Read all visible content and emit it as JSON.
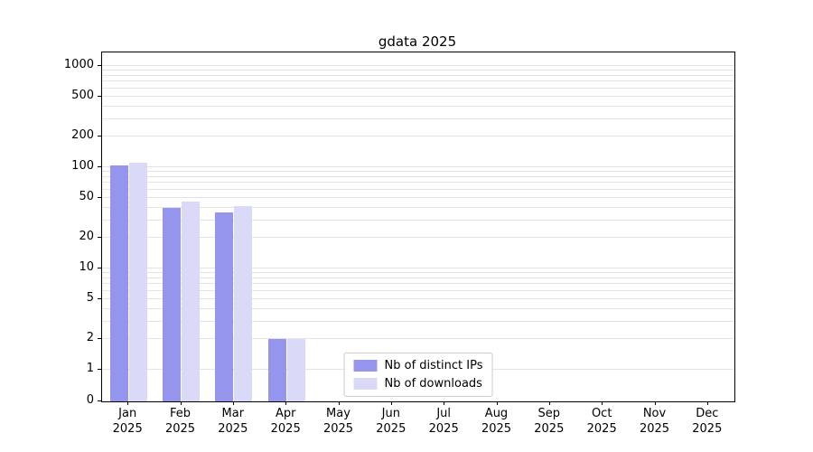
{
  "chart_data": {
    "type": "bar",
    "title": "gdata 2025",
    "categories": [
      {
        "month": "Jan",
        "year": "2025"
      },
      {
        "month": "Feb",
        "year": "2025"
      },
      {
        "month": "Mar",
        "year": "2025"
      },
      {
        "month": "Apr",
        "year": "2025"
      },
      {
        "month": "May",
        "year": "2025"
      },
      {
        "month": "Jun",
        "year": "2025"
      },
      {
        "month": "Jul",
        "year": "2025"
      },
      {
        "month": "Aug",
        "year": "2025"
      },
      {
        "month": "Sep",
        "year": "2025"
      },
      {
        "month": "Oct",
        "year": "2025"
      },
      {
        "month": "Nov",
        "year": "2025"
      },
      {
        "month": "Dec",
        "year": "2025"
      }
    ],
    "series": [
      {
        "name": "Nb of distinct IPs",
        "color": "#9595ee",
        "values": [
          105,
          40,
          36,
          2,
          0,
          0,
          0,
          0,
          0,
          0,
          0,
          0
        ]
      },
      {
        "name": "Nb of downloads",
        "color": "#dadaf8",
        "values": [
          110,
          46,
          41,
          2,
          0,
          0,
          0,
          0,
          0,
          0,
          0,
          0
        ]
      }
    ],
    "yticks": [
      0,
      1,
      2,
      5,
      10,
      20,
      50,
      100,
      200,
      500,
      1000
    ],
    "yscale": "symlog",
    "ylim": [
      0,
      1400
    ],
    "grid": true,
    "legend_position": "lower center"
  }
}
